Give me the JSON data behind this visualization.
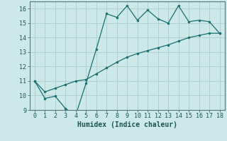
{
  "xlabel": "Humidex (Indice chaleur)",
  "ylabel": "",
  "background_color": "#cce8e8",
  "grid_color": "#b0d0d0",
  "line_color": "#1a6e6e",
  "x_data": [
    0,
    1,
    2,
    3,
    4,
    5,
    6,
    7,
    8,
    9,
    10,
    11,
    12,
    13,
    14,
    15,
    16,
    17,
    18
  ],
  "y_curve": [
    11.0,
    9.8,
    9.95,
    9.1,
    8.65,
    10.85,
    13.2,
    15.65,
    15.4,
    16.2,
    15.2,
    15.9,
    15.3,
    15.0,
    16.2,
    15.1,
    15.2,
    15.1,
    14.3
  ],
  "y_line": [
    11.0,
    10.25,
    10.5,
    10.75,
    11.0,
    11.1,
    11.5,
    11.9,
    12.3,
    12.65,
    12.9,
    13.1,
    13.3,
    13.5,
    13.75,
    14.0,
    14.15,
    14.3,
    14.3
  ],
  "xlim": [
    -0.5,
    18.5
  ],
  "ylim": [
    9.0,
    16.5
  ],
  "xticks": [
    0,
    1,
    2,
    3,
    4,
    5,
    6,
    7,
    8,
    9,
    10,
    11,
    12,
    13,
    14,
    15,
    16,
    17,
    18
  ],
  "yticks": [
    9,
    10,
    11,
    12,
    13,
    14,
    15,
    16
  ],
  "tick_fontsize": 6.0,
  "xlabel_fontsize": 7.0
}
